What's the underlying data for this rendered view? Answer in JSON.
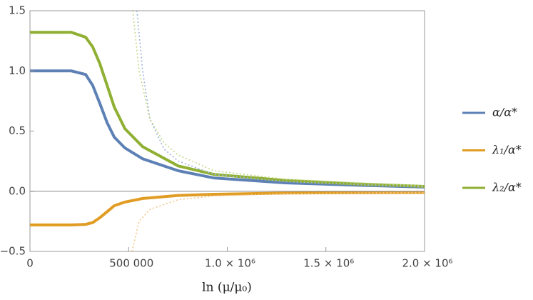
{
  "chart_data": {
    "type": "line",
    "xlabel": "ln (μ/μ₀)",
    "xlim": [
      0,
      2000000
    ],
    "ylim": [
      -0.5,
      1.5
    ],
    "xticks": [
      0,
      {
        "value": 500000,
        "label": "500 000"
      },
      {
        "value": 1000000,
        "label": "1.0 × 10⁶"
      },
      {
        "value": 1500000,
        "label": "1.5 × 10⁶"
      },
      {
        "value": 2000000,
        "label": "2.0 × 10⁶"
      }
    ],
    "yticks": [
      1.5,
      {
        "value": 1.0,
        "label": "1.0"
      },
      0.5,
      {
        "value": 0.0,
        "label": "0.0"
      },
      {
        "value": -0.5,
        "label": "−0.5"
      }
    ],
    "legend": "right",
    "series": [
      {
        "name": "α/α*",
        "color": "#5e81b5",
        "style": "solid",
        "x": [
          0,
          210000,
          282000,
          318000,
          354000,
          391000,
          427000,
          481000,
          571000,
          752000,
          933000,
          1295000,
          1656000,
          2000000
        ],
        "values": [
          1.0,
          1.0,
          0.97,
          0.88,
          0.73,
          0.57,
          0.45,
          0.36,
          0.27,
          0.17,
          0.11,
          0.07,
          0.05,
          0.035
        ]
      },
      {
        "name": "λ₁/α*",
        "color": "#e19c24",
        "style": "solid",
        "x": [
          0,
          210000,
          282000,
          318000,
          354000,
          391000,
          427000,
          481000,
          571000,
          752000,
          933000,
          1295000,
          1656000,
          2000000
        ],
        "values": [
          -0.28,
          -0.28,
          -0.275,
          -0.26,
          -0.22,
          -0.17,
          -0.12,
          -0.09,
          -0.06,
          -0.035,
          -0.025,
          -0.015,
          -0.012,
          -0.01
        ]
      },
      {
        "name": "λ₂/α*",
        "color": "#8fb032",
        "style": "solid",
        "x": [
          0,
          210000,
          282000,
          318000,
          354000,
          391000,
          427000,
          481000,
          571000,
          752000,
          933000,
          1295000,
          1656000,
          2000000
        ],
        "values": [
          1.32,
          1.32,
          1.28,
          1.2,
          1.06,
          0.88,
          0.7,
          0.52,
          0.37,
          0.21,
          0.14,
          0.09,
          0.06,
          0.04
        ]
      },
      {
        "color": "#9fb3d8",
        "style": "dotted",
        "x": [
          542000,
          571000,
          608000,
          680000,
          752000,
          933000,
          1295000,
          2000000
        ],
        "values": [
          1.5,
          1.0,
          0.6,
          0.35,
          0.25,
          0.14,
          0.08,
          0.035
        ]
      },
      {
        "color": "#f0c98a",
        "style": "dotted",
        "x": [
          517000,
          553000,
          608000,
          752000,
          933000,
          1295000,
          2000000
        ],
        "values": [
          -0.5,
          -0.25,
          -0.15,
          -0.07,
          -0.04,
          -0.02,
          -0.01
        ]
      },
      {
        "color": "#c3d98a",
        "style": "dotted",
        "x": [
          521000,
          553000,
          608000,
          680000,
          752000,
          933000,
          1295000,
          2000000
        ],
        "values": [
          1.5,
          1.0,
          0.6,
          0.4,
          0.3,
          0.17,
          0.1,
          0.045
        ]
      }
    ]
  }
}
